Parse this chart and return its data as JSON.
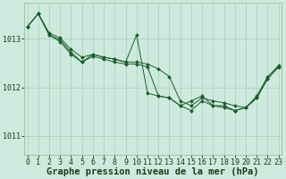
{
  "background_color": "#ceeade",
  "plot_bg_color": "#ceeade",
  "grid_color": "#aaccbb",
  "line_color": "#1a5c2a",
  "marker_color": "#1a5c2a",
  "ylim": [
    1010.6,
    1013.75
  ],
  "yticks": [
    1011,
    1012,
    1013
  ],
  "xlabel": "Graphe pression niveau de la mer (hPa)",
  "hours": [
    0,
    1,
    2,
    3,
    4,
    5,
    6,
    7,
    8,
    9,
    10,
    11,
    12,
    13,
    14,
    15,
    16,
    17,
    18,
    19,
    20,
    21,
    22,
    23
  ],
  "series": [
    [
      1013.25,
      1013.52,
      1013.12,
      1013.02,
      1012.78,
      1012.62,
      1012.68,
      1012.62,
      1012.58,
      1012.52,
      1012.52,
      1012.48,
      1012.38,
      1012.22,
      1011.72,
      1011.62,
      1011.78,
      1011.72,
      1011.68,
      1011.62,
      1011.58,
      1011.78,
      1012.18,
      1012.42
    ],
    [
      1013.25,
      1013.52,
      1013.08,
      1012.98,
      1012.72,
      1012.52,
      1012.68,
      1012.62,
      1012.58,
      1012.52,
      1013.08,
      1011.88,
      1011.82,
      1011.78,
      1011.62,
      1011.72,
      1011.82,
      1011.62,
      1011.62,
      1011.52,
      1011.58,
      1011.82,
      1012.22,
      1012.45
    ],
    [
      1013.25,
      1013.52,
      1013.08,
      1012.94,
      1012.68,
      1012.52,
      1012.64,
      1012.58,
      1012.52,
      1012.48,
      1012.48,
      1012.42,
      1011.82,
      1011.78,
      1011.62,
      1011.52,
      1011.72,
      1011.62,
      1011.58,
      1011.52,
      1011.58,
      1011.78,
      1012.18,
      1012.42
    ]
  ],
  "xlabel_fontsize": 7.5,
  "tick_fontsize": 6,
  "figsize": [
    3.2,
    2.0
  ],
  "dpi": 100
}
